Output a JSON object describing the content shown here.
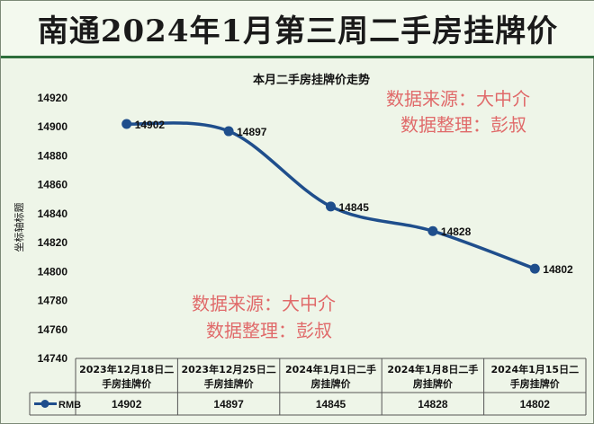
{
  "header": {
    "title": "南通2024年1月第三周二手房挂牌价"
  },
  "watermarks": {
    "top_line1": "数据来源：大中介",
    "top_line2": "数据整理：彭叔",
    "bottom_line1": "数据来源：大中介",
    "bottom_line2": "数据整理：彭叔",
    "color": "#e06a6a"
  },
  "colors": {
    "line": "#1f4e8c",
    "background": "#eef5e8",
    "banner_rule": "#2d6e3b"
  },
  "chart_data": {
    "type": "line",
    "title": "本月二手房挂牌价走势",
    "ylabel": "坐标轴标题",
    "xlabel": "",
    "ylim": [
      14740,
      14920
    ],
    "y_ticks": [
      14740,
      14760,
      14780,
      14800,
      14820,
      14840,
      14860,
      14880,
      14900,
      14920
    ],
    "grid": false,
    "smooth": true,
    "categories": [
      "2023年12月18日二手房挂牌价",
      "2023年12月25日二手房挂牌价",
      "2024年1月1日二手房挂牌价",
      "2024年1月8日二手房挂牌价",
      "2024年1月15日二手房挂牌价"
    ],
    "category_lines": [
      [
        "2023年12月18日二",
        "手房挂牌价"
      ],
      [
        "2023年12月25日二",
        "手房挂牌价"
      ],
      [
        "2024年1月1日二手",
        "房挂牌价"
      ],
      [
        "2024年1月8日二手",
        "房挂牌价"
      ],
      [
        "2024年1月15日二",
        "手房挂牌价"
      ]
    ],
    "series": [
      {
        "name": "RMB",
        "values": [
          14902,
          14897,
          14845,
          14828,
          14802
        ]
      }
    ],
    "data_table": true,
    "data_labels": true
  }
}
